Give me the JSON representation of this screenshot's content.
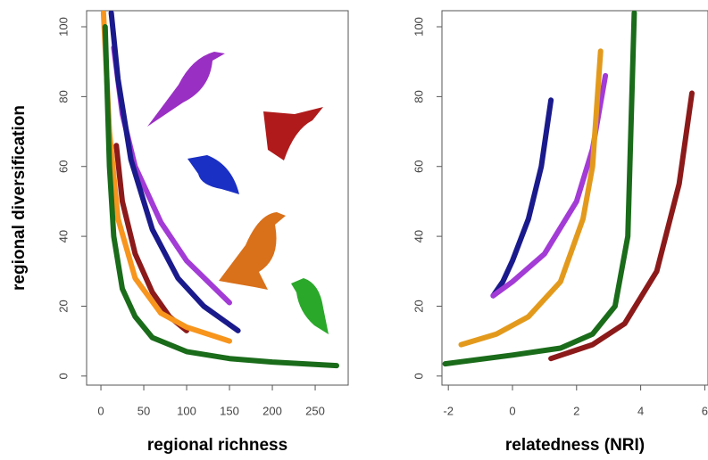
{
  "chart_data": [
    {
      "type": "line",
      "y_label": "regional diversification",
      "x_label": "regional richness",
      "xlim": [
        -16.7,
        288.5
      ],
      "ylim": [
        -2.6,
        104.6
      ],
      "xticks": [
        0,
        50,
        100,
        150,
        200,
        250
      ],
      "yticks": [
        0,
        20,
        40,
        60,
        80,
        100
      ],
      "series": [
        {
          "color": "#8c1a1a",
          "x": [
            18,
            25,
            40,
            60,
            80,
            100
          ],
          "values": [
            66,
            50,
            35,
            24,
            17,
            13
          ]
        },
        {
          "color": "#f7951d",
          "x": [
            3,
            10,
            20,
            40,
            70,
            100,
            150
          ],
          "values": [
            104,
            70,
            45,
            28,
            18,
            14,
            10
          ]
        },
        {
          "color": "#1a6b1a",
          "x": [
            5,
            10,
            15,
            25,
            40,
            60,
            100,
            150,
            200,
            275
          ],
          "values": [
            100,
            60,
            40,
            25,
            17,
            11,
            7,
            5,
            4,
            3
          ]
        },
        {
          "color": "#a33bd6",
          "x": [
            15,
            25,
            40,
            70,
            100,
            150
          ],
          "values": [
            94,
            75,
            60,
            44,
            33,
            21
          ]
        },
        {
          "color": "#1a1a8c",
          "x": [
            12,
            20,
            35,
            60,
            90,
            120,
            160
          ],
          "values": [
            104,
            85,
            62,
            42,
            28,
            20,
            13
          ]
        }
      ]
    },
    {
      "type": "line",
      "x_label": "relatedness (NRI)",
      "xlim": [
        -2.2,
        6.1
      ],
      "ylim": [
        -2.6,
        104.6
      ],
      "xticks": [
        -2,
        0,
        2,
        4,
        6
      ],
      "yticks": [
        0,
        20,
        40,
        60,
        80,
        100
      ],
      "series": [
        {
          "color": "#1a1a8c",
          "x": [
            -0.6,
            -0.3,
            0,
            0.5,
            0.9,
            1.2
          ],
          "values": [
            23,
            27,
            33,
            45,
            60,
            79
          ]
        },
        {
          "color": "#a33bd6",
          "x": [
            -0.6,
            0,
            1,
            2,
            2.5,
            2.9
          ],
          "values": [
            23,
            27,
            35,
            50,
            65,
            86
          ]
        },
        {
          "color": "#e39a1c",
          "x": [
            -1.6,
            -0.5,
            0.5,
            1.5,
            2.2,
            2.5,
            2.75
          ],
          "values": [
            9,
            12,
            17,
            27,
            45,
            60,
            93
          ]
        },
        {
          "color": "#1a6b1a",
          "x": [
            -2.1,
            0,
            1.5,
            2.5,
            3.2,
            3.6,
            3.8
          ],
          "values": [
            3.5,
            6,
            8,
            12,
            20,
            40,
            104
          ]
        },
        {
          "color": "#8c1a1a",
          "x": [
            1.2,
            2.5,
            3.5,
            4.5,
            5.2,
            5.6
          ],
          "values": [
            5,
            9,
            15,
            30,
            55,
            81
          ]
        }
      ]
    }
  ]
}
